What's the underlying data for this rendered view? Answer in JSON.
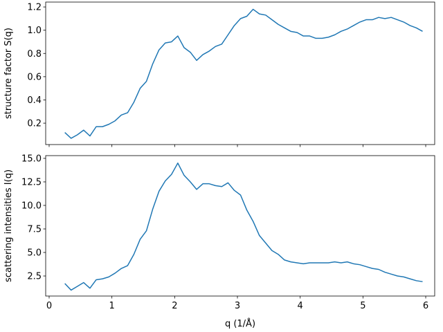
{
  "chart_data": [
    {
      "type": "line",
      "ylabel": "structure factor S(q)",
      "x": [
        0.25,
        0.35,
        0.45,
        0.55,
        0.65,
        0.75,
        0.85,
        0.95,
        1.05,
        1.15,
        1.25,
        1.35,
        1.45,
        1.55,
        1.65,
        1.75,
        1.85,
        1.95,
        2.05,
        2.15,
        2.25,
        2.35,
        2.45,
        2.55,
        2.65,
        2.75,
        2.85,
        2.95,
        3.05,
        3.15,
        3.25,
        3.35,
        3.45,
        3.55,
        3.65,
        3.75,
        3.85,
        3.95,
        4.05,
        4.15,
        4.25,
        4.35,
        4.45,
        4.55,
        4.65,
        4.75,
        4.85,
        4.95,
        5.05,
        5.15,
        5.25,
        5.35,
        5.45,
        5.55,
        5.65,
        5.75,
        5.85,
        5.95
      ],
      "values": [
        0.12,
        0.07,
        0.1,
        0.14,
        0.09,
        0.17,
        0.17,
        0.19,
        0.22,
        0.27,
        0.29,
        0.38,
        0.5,
        0.56,
        0.71,
        0.83,
        0.89,
        0.9,
        0.95,
        0.85,
        0.81,
        0.74,
        0.79,
        0.82,
        0.86,
        0.88,
        0.96,
        1.04,
        1.1,
        1.12,
        1.18,
        1.14,
        1.13,
        1.09,
        1.05,
        1.02,
        0.99,
        0.98,
        0.95,
        0.95,
        0.93,
        0.93,
        0.94,
        0.96,
        0.99,
        1.01,
        1.04,
        1.07,
        1.09,
        1.09,
        1.11,
        1.1,
        1.11,
        1.09,
        1.07,
        1.04,
        1.02,
        0.99
      ],
      "color": "#1f77b4",
      "xlim": [
        -0.055,
        6.143
      ],
      "ylim": [
        0.016,
        1.242
      ],
      "yticks": [
        0.2,
        0.4,
        0.6,
        0.8,
        {
          "value": 1,
          "label": "1.0"
        },
        1.2
      ]
    },
    {
      "type": "line",
      "ylabel": "scattering intensities I(q)",
      "xlabel": "q (1/Å)",
      "x": [
        0.25,
        0.35,
        0.45,
        0.55,
        0.65,
        0.75,
        0.85,
        0.95,
        1.05,
        1.15,
        1.25,
        1.35,
        1.45,
        1.55,
        1.65,
        1.75,
        1.85,
        1.95,
        2.05,
        2.15,
        2.25,
        2.35,
        2.45,
        2.55,
        2.65,
        2.75,
        2.85,
        2.95,
        3.05,
        3.15,
        3.25,
        3.35,
        3.45,
        3.55,
        3.65,
        3.75,
        3.85,
        3.95,
        4.05,
        4.15,
        4.25,
        4.35,
        4.45,
        4.55,
        4.65,
        4.75,
        4.85,
        4.95,
        5.05,
        5.15,
        5.25,
        5.35,
        5.45,
        5.55,
        5.65,
        5.75,
        5.85,
        5.95
      ],
      "values": [
        1.7,
        1.0,
        1.4,
        1.8,
        1.2,
        2.1,
        2.2,
        2.4,
        2.8,
        3.3,
        3.6,
        4.8,
        6.4,
        7.3,
        9.6,
        11.5,
        12.6,
        13.3,
        14.5,
        13.2,
        12.5,
        11.7,
        12.3,
        12.3,
        12.1,
        12.0,
        12.4,
        11.6,
        11.1,
        9.5,
        8.3,
        6.8,
        6.0,
        5.2,
        4.8,
        4.2,
        4.0,
        3.9,
        3.8,
        3.9,
        3.9,
        3.9,
        3.9,
        4.0,
        3.9,
        4.0,
        3.8,
        3.7,
        3.5,
        3.3,
        3.2,
        2.9,
        2.7,
        2.5,
        2.4,
        2.2,
        2.0,
        1.9
      ],
      "color": "#1f77b4",
      "xlim": [
        -0.055,
        6.143
      ],
      "ylim": [
        0.37,
        15.29
      ],
      "xticks": [
        0,
        1,
        2,
        3,
        4,
        5,
        6
      ],
      "yticks": [
        2.5,
        {
          "value": 5,
          "label": "5.0"
        },
        7.5,
        {
          "value": 10,
          "label": "10.0"
        },
        12.5,
        {
          "value": 15,
          "label": "15.0"
        }
      ]
    }
  ]
}
